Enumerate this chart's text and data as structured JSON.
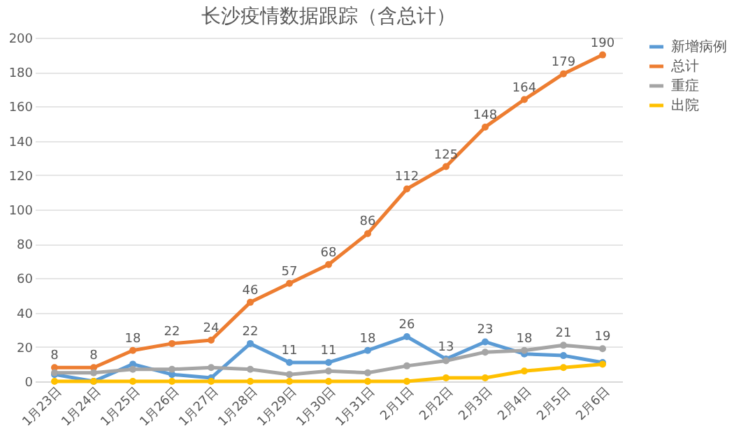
{
  "chart_data": {
    "type": "line",
    "title": "长沙疫情数据跟踪（含总计）",
    "categories": [
      "1月23日",
      "1月24日",
      "1月25日",
      "1月26日",
      "1月27日",
      "1月28日",
      "1月29日",
      "1月30日",
      "1月31日",
      "2月1日",
      "2月2日",
      "2月3日",
      "2月4日",
      "2月5日",
      "2月6日"
    ],
    "series": [
      {
        "name": "新增病例",
        "color": "#5b9bd5",
        "values": [
          4,
          0,
          10,
          4,
          2,
          22,
          11,
          11,
          18,
          26,
          13,
          23,
          16,
          15,
          11
        ],
        "value_labels": [
          null,
          null,
          null,
          null,
          null,
          "22",
          "11",
          "11",
          "18",
          "26",
          "13",
          "23",
          null,
          null,
          null
        ]
      },
      {
        "name": "总计",
        "color": "#ed7d31",
        "values": [
          8,
          8,
          18,
          22,
          24,
          46,
          57,
          68,
          86,
          112,
          125,
          148,
          164,
          179,
          190
        ],
        "value_labels": [
          "8",
          "8",
          "18",
          "22",
          "24",
          "46",
          "57",
          "68",
          "86",
          "112",
          "125",
          "148",
          "164",
          "179",
          "190"
        ]
      },
      {
        "name": "重症",
        "color": "#a5a5a5",
        "values": [
          5,
          5,
          7,
          7,
          8,
          7,
          4,
          6,
          5,
          9,
          12,
          17,
          18,
          21,
          19
        ],
        "value_labels": [
          null,
          null,
          null,
          null,
          null,
          null,
          null,
          null,
          null,
          null,
          null,
          null,
          "18",
          "21",
          "19"
        ]
      },
      {
        "name": "出院",
        "color": "#ffc000",
        "values": [
          0,
          0,
          0,
          0,
          0,
          0,
          0,
          0,
          0,
          0,
          2,
          2,
          6,
          8,
          10
        ]
      }
    ],
    "ylim": [
      0,
      200
    ],
    "yticks": [
      0,
      20,
      40,
      60,
      80,
      100,
      120,
      140,
      160,
      180,
      200
    ],
    "grid": "y",
    "legend": "right",
    "marker": "circle"
  }
}
